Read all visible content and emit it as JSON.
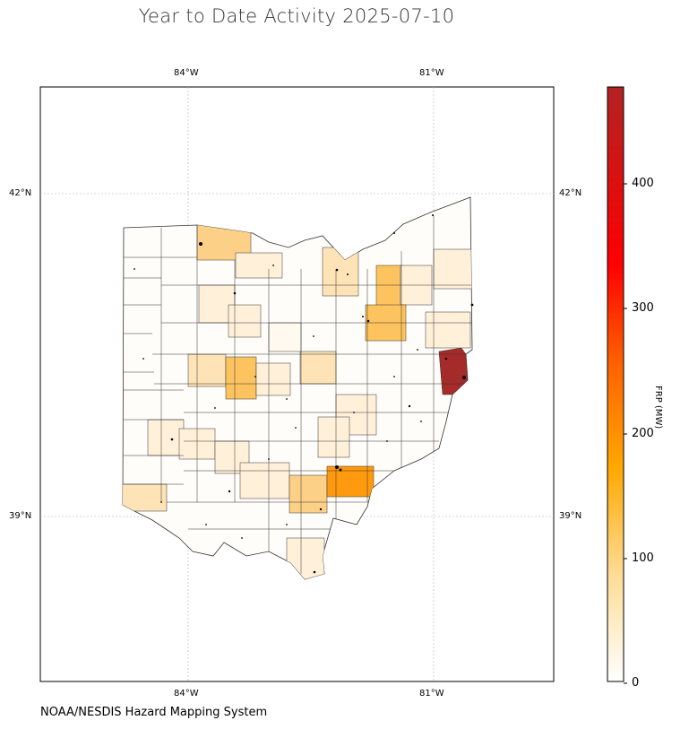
{
  "title": "Year to Date Activity 2025-07-10",
  "credit": "NOAA/NESDIS Hazard Mapping System",
  "map": {
    "region": "Ohio counties",
    "lon_labels": [
      "84°W",
      "81°W"
    ],
    "lat_labels": [
      "42°N",
      "39°N"
    ],
    "gridlines": true,
    "colors": {
      "none": "#ffffff",
      "very_low": "#fff9f0",
      "low": "#fff0d9",
      "medium_low": "#fde3b5",
      "medium": "#fdd088",
      "medium_high": "#fdc35e",
      "high": "#ff9a0e",
      "very_high": "#a52a2a"
    }
  },
  "colorbar": {
    "label": "FRP (MW)",
    "ticks": [
      "0",
      "100",
      "200",
      "300",
      "400"
    ],
    "min": 0,
    "max": 475,
    "colors": [
      "#ffffff",
      "#ffe4a3",
      "#ffa500",
      "#ff3300",
      "#ff0000",
      "#b22222"
    ]
  }
}
